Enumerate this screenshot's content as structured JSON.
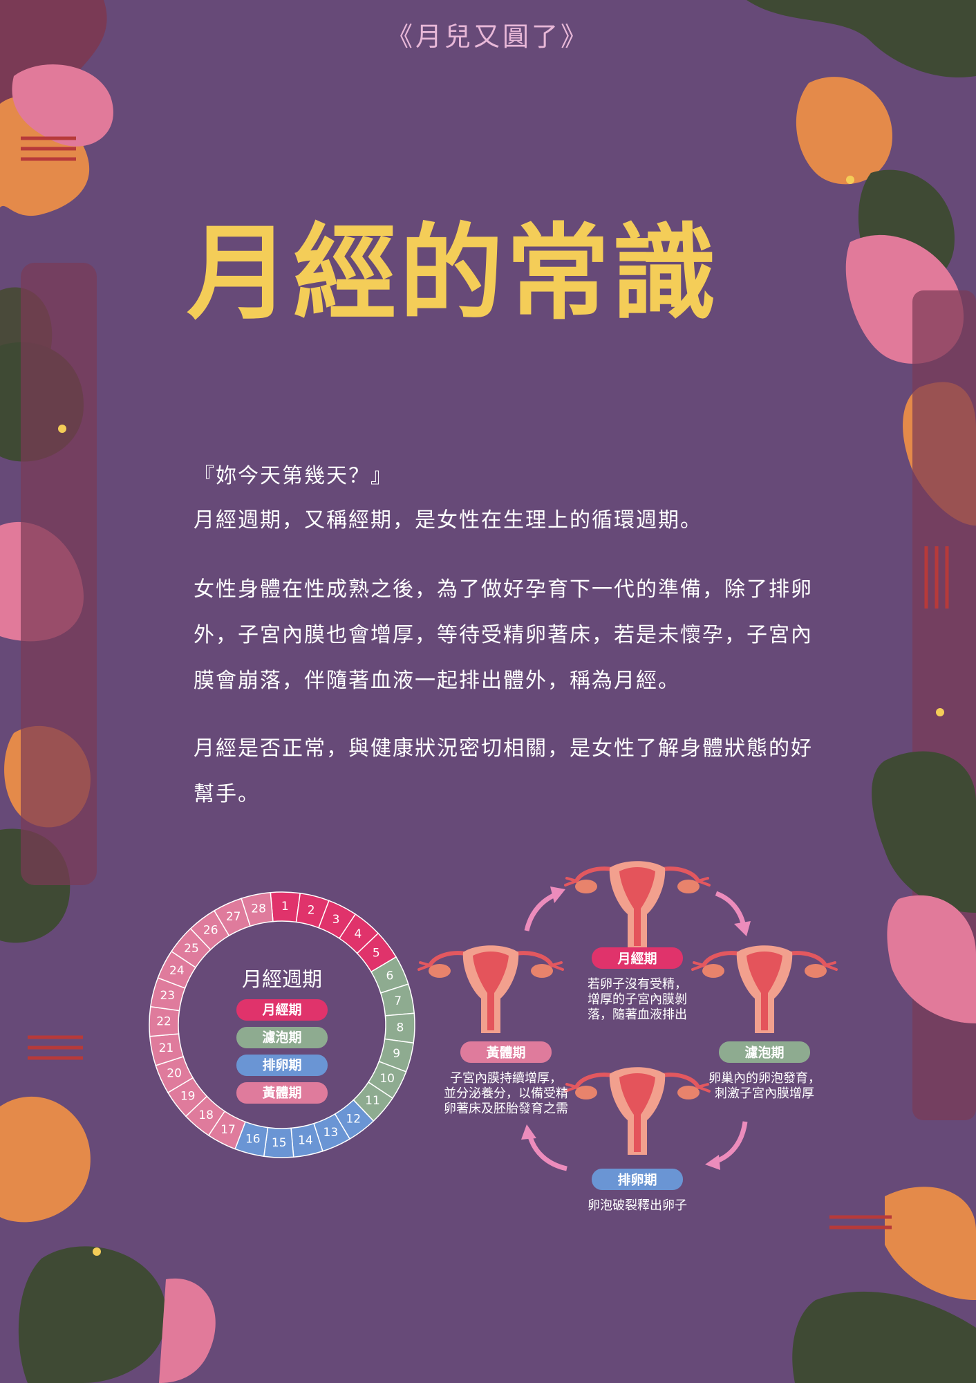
{
  "header": {
    "series_title": "《月兒又圓了》"
  },
  "main": {
    "title": "月經的常識",
    "quote": "『妳今天第幾天？』",
    "paragraphs": [
      "月經週期，又稱經期，是女性在生理上的循環週期。",
      "女性身體在性成熟之後，為了做好孕育下一代的準備，除了排卵外，子宮內膜也會增厚，等待受精卵著床，若是未懷孕，子宮內膜會崩落，伴隨著血液一起排出體外，稱為月經。",
      "月經是否正常，與健康狀況密切相關，是女性了解身體狀態的好幫手。"
    ]
  },
  "cycle_wheel": {
    "title": "月經週期",
    "days": [
      "1",
      "2",
      "3",
      "4",
      "5",
      "6",
      "7",
      "8",
      "9",
      "10",
      "11",
      "12",
      "13",
      "14",
      "15",
      "16",
      "17",
      "18",
      "19",
      "20",
      "21",
      "22",
      "23",
      "24",
      "25",
      "26",
      "27",
      "28"
    ],
    "day_phase": [
      "m",
      "m",
      "m",
      "m",
      "m",
      "f",
      "f",
      "f",
      "f",
      "f",
      "f",
      "o",
      "o",
      "o",
      "o",
      "o",
      "l",
      "l",
      "l",
      "l",
      "l",
      "l",
      "l",
      "l",
      "l",
      "l",
      "l",
      "l"
    ],
    "legend": [
      {
        "key": "m",
        "label": "月經期"
      },
      {
        "key": "f",
        "label": "濾泡期"
      },
      {
        "key": "o",
        "label": "排卵期"
      },
      {
        "key": "l",
        "label": "黃體期"
      }
    ]
  },
  "phase_colors": {
    "m": "#e0336b",
    "f": "#8eab90",
    "o": "#6a95d4",
    "l": "#df7b9c"
  },
  "cycle_stages": [
    {
      "key": "m",
      "label": "月經期",
      "desc": [
        "若卵子沒有受精，",
        "增厚的子宮內膜剝",
        "落，隨著血液排出"
      ]
    },
    {
      "key": "f",
      "label": "濾泡期",
      "desc": [
        "卵巢內的卵泡發育，",
        "刺激子宮內膜增厚"
      ]
    },
    {
      "key": "o",
      "label": "排卵期",
      "desc": [
        "卵泡破裂釋出卵子"
      ]
    },
    {
      "key": "l",
      "label": "黃體期",
      "desc": [
        "子宮內膜持續增厚，",
        "並分泌養分，以備受精",
        "卵著床及胚胎發育之需"
      ]
    }
  ],
  "colors": {
    "background": "#674a78",
    "title": "#f4cd58",
    "text": "#ffffff",
    "arrow": "#ec8cbc"
  }
}
